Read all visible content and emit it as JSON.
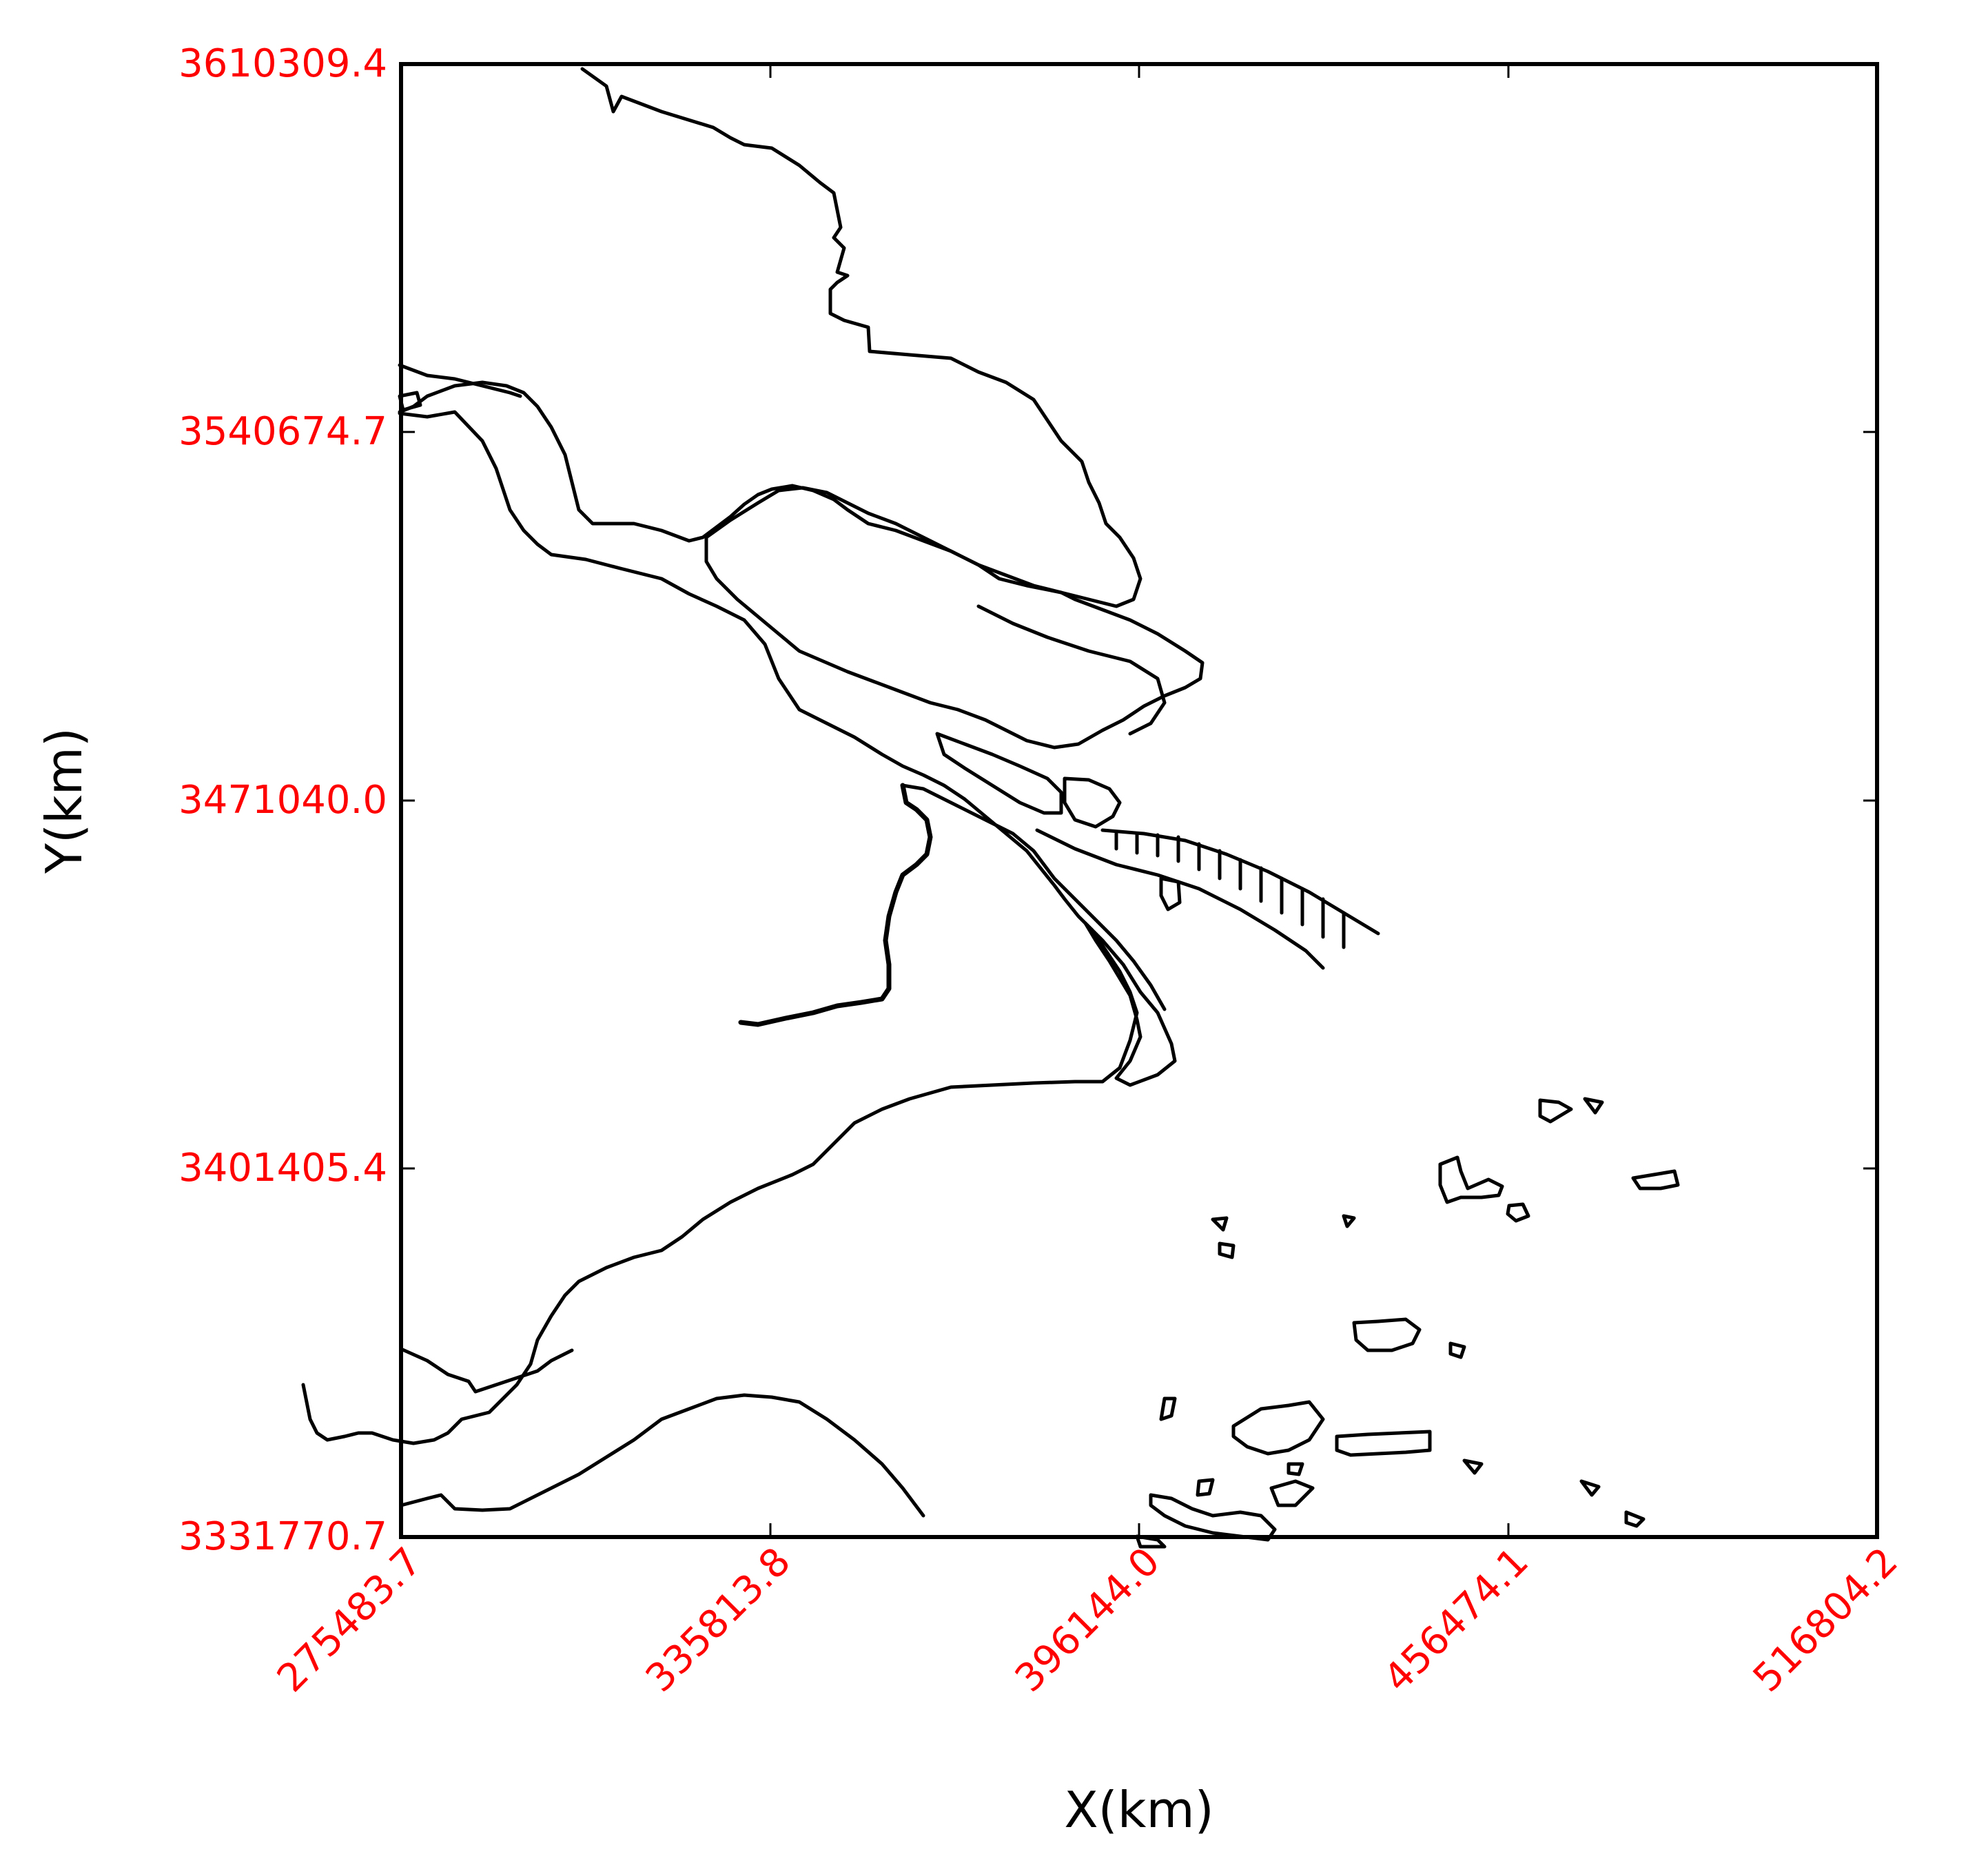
{
  "chart_data": {
    "type": "map",
    "xlabel": "X(km)",
    "ylabel": "Y(km)",
    "xlim": [
      275483.7,
      516804.2
    ],
    "ylim": [
      3331770.7,
      3610309.4
    ],
    "x_ticks": [
      "275483.7",
      "335813.8",
      "396144.0",
      "456474.1",
      "516804.2"
    ],
    "y_ticks": [
      "3610309.4",
      "3540674.7",
      "3471040.0",
      "3401405.4",
      "3331770.7"
    ],
    "tick_label_color": "#ff0000",
    "line_color": "#000000",
    "grid": false,
    "legend": "none"
  }
}
